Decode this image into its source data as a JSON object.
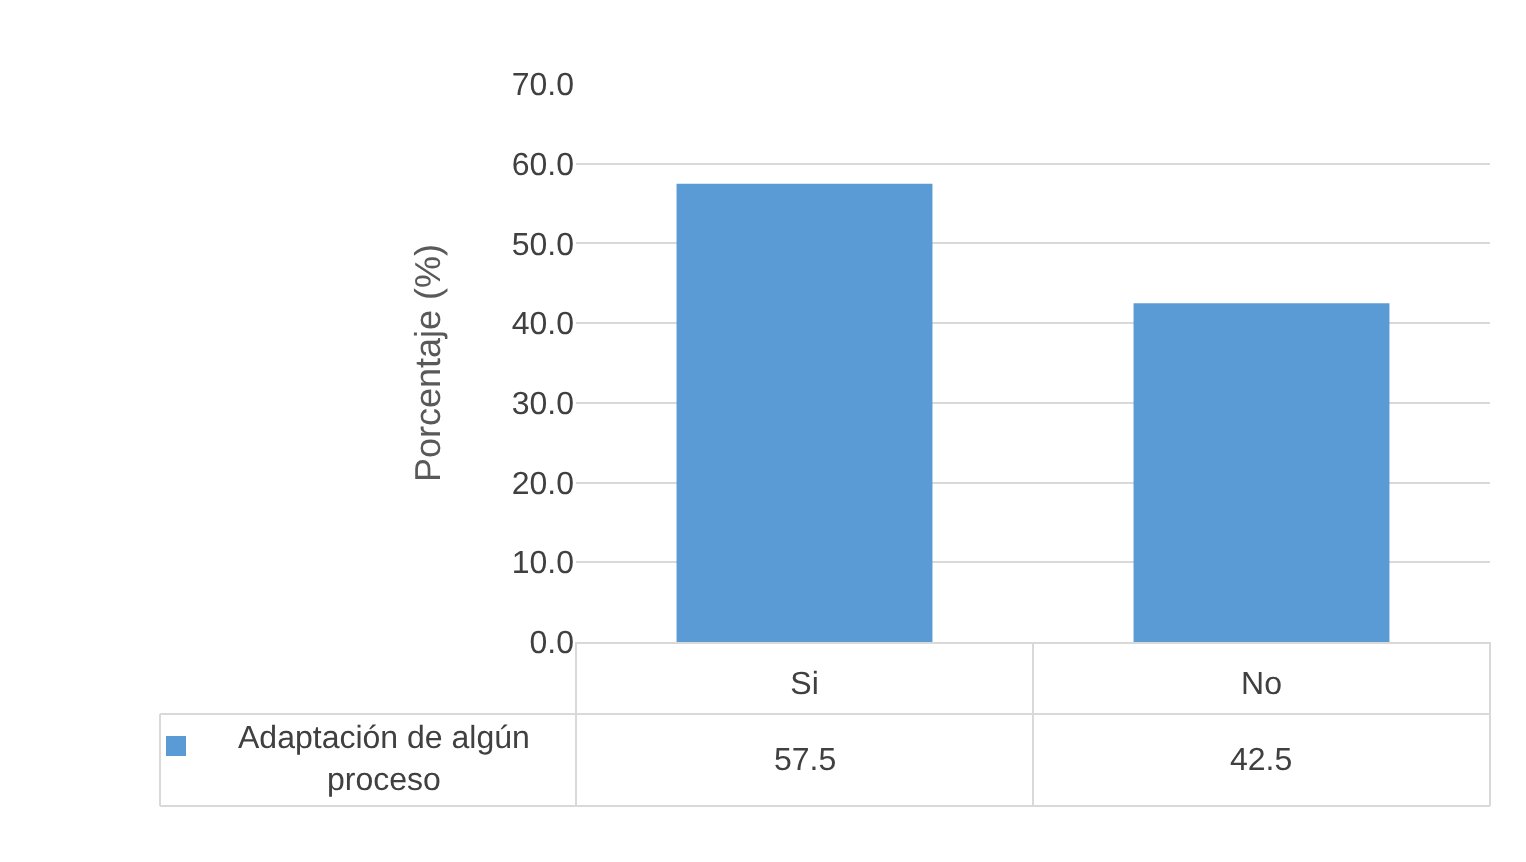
{
  "chart_data": {
    "type": "bar",
    "ylabel": "Porcentaje (%)",
    "categories": [
      "Si",
      "No"
    ],
    "series": [
      {
        "name": "Adaptación de algún proceso",
        "color": "#5b9bd5",
        "values": [
          57.5,
          42.5
        ]
      }
    ],
    "ylim": [
      0,
      70
    ],
    "yticks": [
      {
        "value": 0,
        "label": "0.0"
      },
      {
        "value": 10,
        "label": "10.0"
      },
      {
        "value": 20,
        "label": "20.0"
      },
      {
        "value": 30,
        "label": "30.0"
      },
      {
        "value": 40,
        "label": "40.0"
      },
      {
        "value": 50,
        "label": "50.0"
      },
      {
        "value": 60,
        "label": "60.0"
      },
      {
        "value": 70,
        "label": "70.0"
      }
    ],
    "grid": "y",
    "legend": "bottom",
    "data_labels": true
  }
}
